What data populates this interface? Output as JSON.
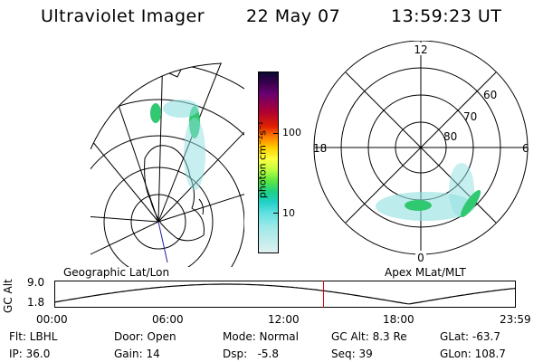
{
  "header": {
    "instrument": "Ultraviolet Imager",
    "date": "22 May 07",
    "time": "13:59:23 UT"
  },
  "colorbar": {
    "unit_label": "photon cm⁻²s⁻¹",
    "tick_100": "100",
    "tick_10": "10"
  },
  "panels": {
    "left_label": "Geographic Lat/Lon",
    "right_label": "Apex MLat/MLT"
  },
  "polar": {
    "mlt_12": "12",
    "mlt_18": "18",
    "mlt_6": "6",
    "mlt_0": "0",
    "lat_60": "60",
    "lat_70": "70",
    "lat_80": "80"
  },
  "timeline": {
    "ylabel": "GC Alt",
    "ytick_top": "9.0",
    "ytick_bottom": "1.8",
    "x_ticks": [
      "00:00",
      "06:00",
      "12:00",
      "18:00",
      "23:59"
    ],
    "current_time_hours": 14.0
  },
  "status": {
    "flt": "Flt: LBHL",
    "ip": "IP: 36.0",
    "door": "Door: Open",
    "gain": "Gain: 14",
    "mode": "Mode: Normal",
    "dsp": "Dsp:   -5.8",
    "gc_alt": "GC Alt: 8.3 Re",
    "seq": "Seq: 39",
    "glat": "GLat: -63.7",
    "glon": "GLon: 108.7"
  },
  "colors": {
    "aurora_green": "#30c870",
    "aurora_cyan": "#90e0e0",
    "marker_red": "#d00000",
    "pole_line": "#2020a0"
  }
}
